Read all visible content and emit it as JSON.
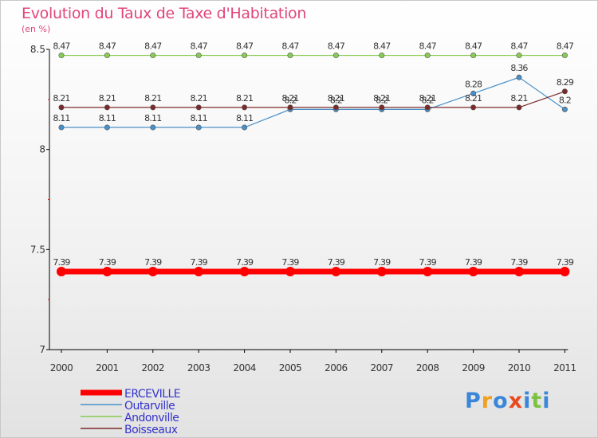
{
  "brand": {
    "letters": [
      "P",
      "r",
      "o",
      "x",
      "i",
      "t",
      "i"
    ],
    "colors": [
      "#3a86d8",
      "#f0a020",
      "#3a86d8",
      "#e84a1e",
      "#3a86d8",
      "#7cc242",
      "#3a86d8"
    ]
  },
  "chart_data": {
    "type": "line",
    "title": "Evolution du Taux de Taxe d'Habitation",
    "ylabel": "(en %)",
    "x": [
      "2000",
      "2001",
      "2002",
      "2003",
      "2004",
      "2005",
      "2006",
      "2007",
      "2008",
      "2009",
      "2010",
      "2011"
    ],
    "ylim": [
      7,
      8.5
    ],
    "yticks": [
      "7",
      "7.5",
      "8",
      "8.5"
    ],
    "grid": false,
    "legend_position": "bottom-left",
    "series": [
      {
        "name": "ERCEVILLE",
        "color": "#ff0000",
        "values": [
          7.39,
          7.39,
          7.39,
          7.39,
          7.39,
          7.39,
          7.39,
          7.39,
          7.39,
          7.39,
          7.39,
          7.39
        ],
        "labels": [
          "7.39",
          "7.39",
          "7.39",
          "7.39",
          "7.39",
          "7.39",
          "7.39",
          "7.39",
          "7.39",
          "7.39",
          "7.39",
          "7.39"
        ]
      },
      {
        "name": "Outarville",
        "color": "#4a90c8",
        "values": [
          8.11,
          8.11,
          8.11,
          8.11,
          8.11,
          8.2,
          8.2,
          8.2,
          8.2,
          8.28,
          8.36,
          8.2
        ],
        "labels": [
          "8.11",
          "8.11",
          "8.11",
          "8.11",
          "8.11",
          "8.2",
          "8.2",
          "8.2",
          "8.2",
          "8.28",
          "8.36",
          "8.2"
        ]
      },
      {
        "name": "Andonville",
        "color": "#88cc55",
        "values": [
          8.47,
          8.47,
          8.47,
          8.47,
          8.47,
          8.47,
          8.47,
          8.47,
          8.47,
          8.47,
          8.47,
          8.47
        ],
        "labels": [
          "8.47",
          "8.47",
          "8.47",
          "8.47",
          "8.47",
          "8.47",
          "8.47",
          "8.47",
          "8.47",
          "8.47",
          "8.47",
          "8.47"
        ]
      },
      {
        "name": "Boisseaux",
        "color": "#7a2a2a",
        "values": [
          8.21,
          8.21,
          8.21,
          8.21,
          8.21,
          8.21,
          8.21,
          8.21,
          8.21,
          8.21,
          8.21,
          8.29
        ],
        "labels": [
          "8.21",
          "8.21",
          "8.21",
          "8.21",
          "8.21",
          "8.21",
          "8.21",
          "8.21",
          "8.21",
          "8.21",
          "8.21",
          "8.29"
        ]
      }
    ]
  }
}
